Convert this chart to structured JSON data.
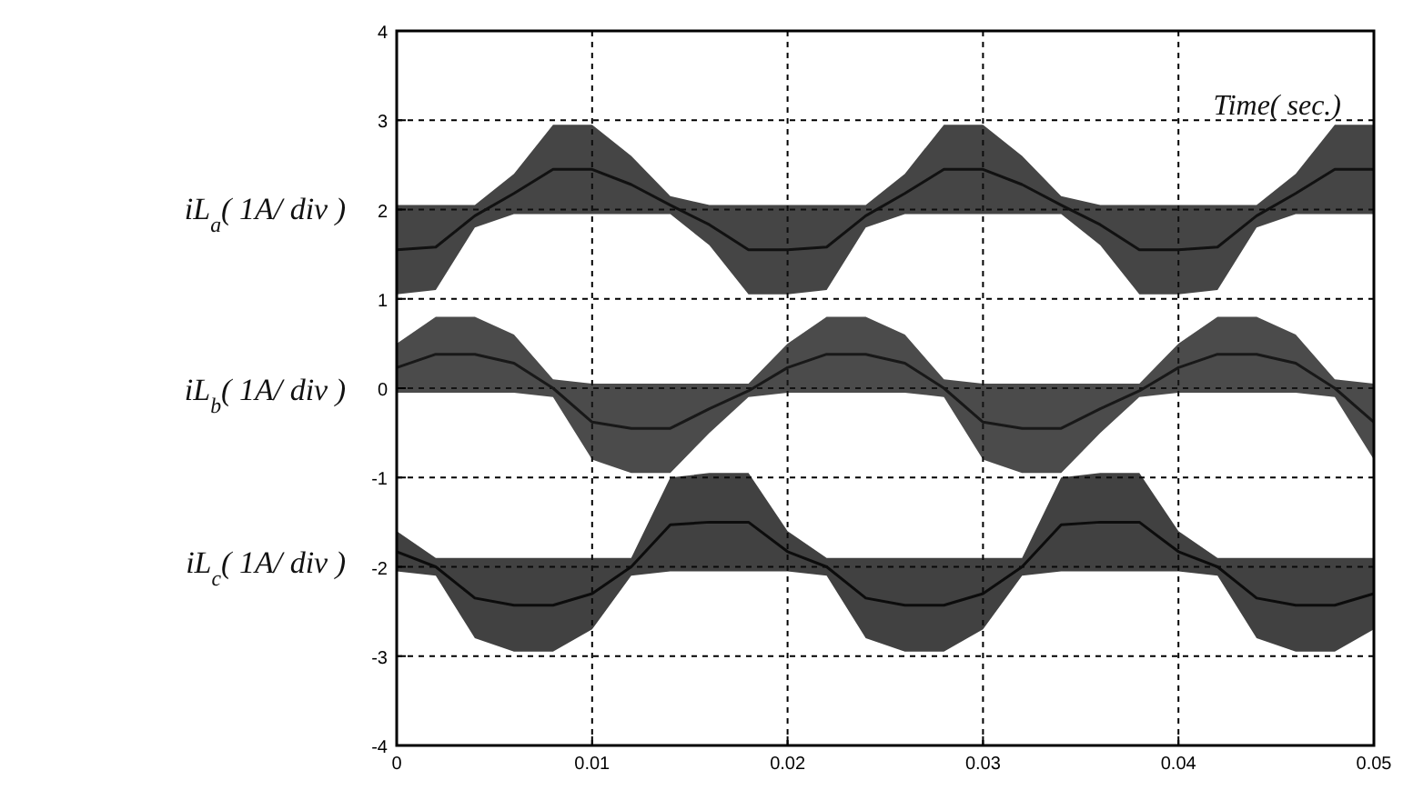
{
  "chart_data": {
    "type": "line",
    "x": [
      0,
      0.002,
      0.004,
      0.006,
      0.008,
      0.01,
      0.012,
      0.014,
      0.016,
      0.018,
      0.02,
      0.022,
      0.024,
      0.026,
      0.028,
      0.03,
      0.032,
      0.034,
      0.036,
      0.038,
      0.04,
      0.042,
      0.044,
      0.046,
      0.048,
      0.05
    ],
    "series": [
      {
        "name": "iL$_{a}$( 1A/ div )",
        "color": "#111111",
        "values": [
          1.55,
          1.58,
          1.93,
          2.18,
          2.45,
          2.45,
          2.28,
          2.05,
          1.83,
          1.55,
          1.55,
          1.58,
          1.93,
          2.18,
          2.45,
          2.45,
          2.28,
          2.05,
          1.83,
          1.55,
          1.55,
          1.58,
          1.93,
          2.18,
          2.45,
          2.45
        ],
        "upper": [
          2.05,
          2.05,
          2.05,
          2.4,
          2.95,
          2.95,
          2.6,
          2.15,
          2.05,
          2.05,
          2.05,
          2.05,
          2.05,
          2.4,
          2.95,
          2.95,
          2.6,
          2.15,
          2.05,
          2.05,
          2.05,
          2.05,
          2.05,
          2.4,
          2.95,
          2.95
        ],
        "lower": [
          1.05,
          1.1,
          1.8,
          1.95,
          1.95,
          1.95,
          1.95,
          1.95,
          1.6,
          1.05,
          1.05,
          1.1,
          1.8,
          1.95,
          1.95,
          1.95,
          1.95,
          1.95,
          1.6,
          1.05,
          1.05,
          1.1,
          1.8,
          1.95,
          1.95,
          1.95
        ]
      },
      {
        "name": "iL$_{b}$( 1A/ div )",
        "color": "#181818",
        "values": [
          0.23,
          0.38,
          0.38,
          0.28,
          0,
          -0.38,
          -0.45,
          -0.45,
          -0.23,
          -0.03,
          0.23,
          0.38,
          0.38,
          0.28,
          0,
          -0.38,
          -0.45,
          -0.45,
          -0.23,
          -0.03,
          0.23,
          0.38,
          0.38,
          0.28,
          0,
          -0.38
        ],
        "upper": [
          0.5,
          0.8,
          0.8,
          0.6,
          0.1,
          0.05,
          0.05,
          0.05,
          0.05,
          0.05,
          0.5,
          0.8,
          0.8,
          0.6,
          0.1,
          0.05,
          0.05,
          0.05,
          0.05,
          0.05,
          0.5,
          0.8,
          0.8,
          0.6,
          0.1,
          0.05
        ],
        "lower": [
          -0.05,
          -0.05,
          -0.05,
          -0.05,
          -0.1,
          -0.8,
          -0.95,
          -0.95,
          -0.5,
          -0.1,
          -0.05,
          -0.05,
          -0.05,
          -0.05,
          -0.1,
          -0.8,
          -0.95,
          -0.95,
          -0.5,
          -0.1,
          -0.05,
          -0.05,
          -0.05,
          -0.05,
          -0.1,
          -0.8
        ]
      },
      {
        "name": "iL$_{c}$( 1A/ div )",
        "color": "#0c0c0c",
        "values": [
          -1.83,
          -2,
          -2.35,
          -2.43,
          -2.43,
          -2.3,
          -2,
          -1.53,
          -1.5,
          -1.5,
          -1.83,
          -2,
          -2.35,
          -2.43,
          -2.43,
          -2.3,
          -2,
          -1.53,
          -1.5,
          -1.5,
          -1.83,
          -2,
          -2.35,
          -2.43,
          -2.43,
          -2.3
        ],
        "upper": [
          -1.6,
          -1.9,
          -1.9,
          -1.9,
          -1.9,
          -1.9,
          -1.9,
          -1,
          -0.95,
          -0.95,
          -1.6,
          -1.9,
          -1.9,
          -1.9,
          -1.9,
          -1.9,
          -1.9,
          -1,
          -0.95,
          -0.95,
          -1.6,
          -1.9,
          -1.9,
          -1.9,
          -1.9,
          -1.9
        ],
        "lower": [
          -2.05,
          -2.1,
          -2.8,
          -2.95,
          -2.95,
          -2.7,
          -2.1,
          -2.05,
          -2.05,
          -2.05,
          -2.05,
          -2.1,
          -2.8,
          -2.95,
          -2.95,
          -2.7,
          -2.1,
          -2.05,
          -2.05,
          -2.05,
          -2.05,
          -2.1,
          -2.8,
          -2.95,
          -2.95,
          -2.7
        ]
      }
    ],
    "xlim": [
      0,
      0.05
    ],
    "xticks": [
      0,
      0.01,
      0.02,
      0.03,
      0.04,
      0.05
    ],
    "ylim": [
      -4,
      4
    ],
    "yticks": [
      -4,
      -3,
      -2,
      -1,
      0,
      1,
      2,
      3,
      4
    ],
    "grid": true,
    "annotations": [
      "Time( sec.)"
    ]
  }
}
